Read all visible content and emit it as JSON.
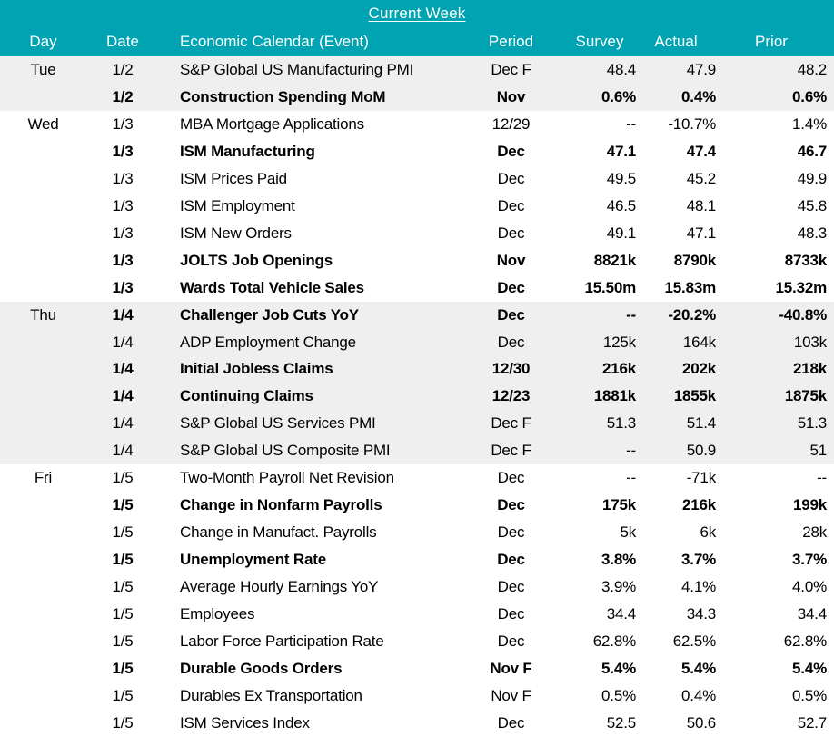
{
  "colors": {
    "header_bg": "#00A3B1",
    "header_text": "#FFFFFF",
    "stripe_bg": "#EFEFEF",
    "body_text": "#000000"
  },
  "chart_data": {
    "type": "table",
    "title": "Current Week",
    "columns": [
      "Day",
      "Date",
      "Economic Calendar (Event)",
      "Period",
      "Survey",
      "Actual",
      "Prior"
    ],
    "rows": [
      {
        "day": "Tue",
        "date": "1/2",
        "event": "S&P Global US Manufacturing PMI",
        "period": "Dec F",
        "survey": "48.4",
        "actual": "47.9",
        "prior": "48.2",
        "bold": false,
        "group_shaded": true
      },
      {
        "day": "",
        "date": "1/2",
        "event": "Construction Spending MoM",
        "period": "Nov",
        "survey": "0.6%",
        "actual": "0.4%",
        "prior": "0.6%",
        "bold": true,
        "group_shaded": true
      },
      {
        "day": "Wed",
        "date": "1/3",
        "event": "MBA Mortgage Applications",
        "period": "12/29",
        "survey": "--",
        "actual": "-10.7%",
        "prior": "1.4%",
        "bold": false,
        "group_shaded": false
      },
      {
        "day": "",
        "date": "1/3",
        "event": "ISM Manufacturing",
        "period": "Dec",
        "survey": "47.1",
        "actual": "47.4",
        "prior": "46.7",
        "bold": true,
        "group_shaded": false
      },
      {
        "day": "",
        "date": "1/3",
        "event": "ISM Prices Paid",
        "period": "Dec",
        "survey": "49.5",
        "actual": "45.2",
        "prior": "49.9",
        "bold": false,
        "group_shaded": false
      },
      {
        "day": "",
        "date": "1/3",
        "event": "ISM Employment",
        "period": "Dec",
        "survey": "46.5",
        "actual": "48.1",
        "prior": "45.8",
        "bold": false,
        "group_shaded": false
      },
      {
        "day": "",
        "date": "1/3",
        "event": "ISM New Orders",
        "period": "Dec",
        "survey": "49.1",
        "actual": "47.1",
        "prior": "48.3",
        "bold": false,
        "group_shaded": false
      },
      {
        "day": "",
        "date": "1/3",
        "event": "JOLTS Job Openings",
        "period": "Nov",
        "survey": "8821k",
        "actual": "8790k",
        "prior": "8733k",
        "bold": true,
        "group_shaded": false
      },
      {
        "day": "",
        "date": "1/3",
        "event": "Wards Total Vehicle Sales",
        "period": "Dec",
        "survey": "15.50m",
        "actual": "15.83m",
        "prior": "15.32m",
        "bold": true,
        "group_shaded": false
      },
      {
        "day": "Thu",
        "date": "1/4",
        "event": "Challenger Job Cuts YoY",
        "period": "Dec",
        "survey": "--",
        "actual": "-20.2%",
        "prior": "-40.8%",
        "bold": true,
        "group_shaded": true
      },
      {
        "day": "",
        "date": "1/4",
        "event": "ADP Employment Change",
        "period": "Dec",
        "survey": "125k",
        "actual": "164k",
        "prior": "103k",
        "bold": false,
        "group_shaded": true
      },
      {
        "day": "",
        "date": "1/4",
        "event": "Initial Jobless Claims",
        "period": "12/30",
        "survey": "216k",
        "actual": "202k",
        "prior": "218k",
        "bold": true,
        "group_shaded": true
      },
      {
        "day": "",
        "date": "1/4",
        "event": "Continuing Claims",
        "period": "12/23",
        "survey": "1881k",
        "actual": "1855k",
        "prior": "1875k",
        "bold": true,
        "group_shaded": true
      },
      {
        "day": "",
        "date": "1/4",
        "event": "S&P Global US Services PMI",
        "period": "Dec F",
        "survey": "51.3",
        "actual": "51.4",
        "prior": "51.3",
        "bold": false,
        "group_shaded": true
      },
      {
        "day": "",
        "date": "1/4",
        "event": "S&P Global US Composite PMI",
        "period": "Dec F",
        "survey": "--",
        "actual": "50.9",
        "prior": "51",
        "bold": false,
        "group_shaded": true
      },
      {
        "day": "Fri",
        "date": "1/5",
        "event": "Two-Month Payroll Net Revision",
        "period": "Dec",
        "survey": "--",
        "actual": "-71k",
        "prior": "--",
        "bold": false,
        "group_shaded": false
      },
      {
        "day": "",
        "date": "1/5",
        "event": "Change in Nonfarm Payrolls",
        "period": "Dec",
        "survey": "175k",
        "actual": "216k",
        "prior": "199k",
        "bold": true,
        "group_shaded": false
      },
      {
        "day": "",
        "date": "1/5",
        "event": "Change in Manufact. Payrolls",
        "period": "Dec",
        "survey": "5k",
        "actual": "6k",
        "prior": "28k",
        "bold": false,
        "group_shaded": false
      },
      {
        "day": "",
        "date": "1/5",
        "event": "Unemployment Rate",
        "period": "Dec",
        "survey": "3.8%",
        "actual": "3.7%",
        "prior": "3.7%",
        "bold": true,
        "group_shaded": false
      },
      {
        "day": "",
        "date": "1/5",
        "event": "Average Hourly Earnings YoY",
        "period": "Dec",
        "survey": "3.9%",
        "actual": "4.1%",
        "prior": "4.0%",
        "bold": false,
        "group_shaded": false
      },
      {
        "day": "",
        "date": "1/5",
        "event": "Employees",
        "period": "Dec",
        "survey": "34.4",
        "actual": "34.3",
        "prior": "34.4",
        "bold": false,
        "group_shaded": false
      },
      {
        "day": "",
        "date": "1/5",
        "event": "Labor Force Participation Rate",
        "period": "Dec",
        "survey": "62.8%",
        "actual": "62.5%",
        "prior": "62.8%",
        "bold": false,
        "group_shaded": false
      },
      {
        "day": "",
        "date": "1/5",
        "event": "Durable Goods Orders",
        "period": "Nov F",
        "survey": "5.4%",
        "actual": "5.4%",
        "prior": "5.4%",
        "bold": true,
        "group_shaded": false
      },
      {
        "day": "",
        "date": "1/5",
        "event": "Durables Ex Transportation",
        "period": "Nov F",
        "survey": "0.5%",
        "actual": "0.4%",
        "prior": "0.5%",
        "bold": false,
        "group_shaded": false
      },
      {
        "day": "",
        "date": "1/5",
        "event": "ISM Services Index",
        "period": "Dec",
        "survey": "52.5",
        "actual": "50.6",
        "prior": "52.7",
        "bold": false,
        "group_shaded": false
      }
    ]
  }
}
